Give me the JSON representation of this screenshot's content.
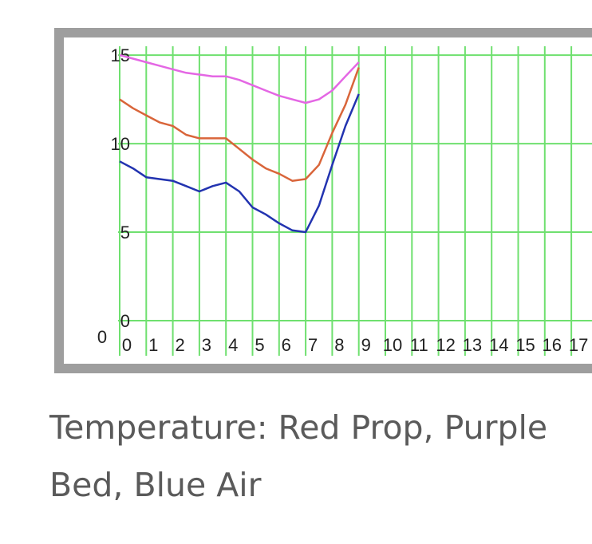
{
  "chart_data": {
    "type": "line",
    "x": [
      0,
      0.5,
      1,
      1.5,
      2,
      2.5,
      3,
      3.5,
      4,
      4.5,
      5,
      5.5,
      6,
      6.5,
      7,
      7.5,
      8,
      8.5,
      9
    ],
    "series": [
      {
        "color": "#e467e4",
        "values": [
          15.0,
          14.8,
          14.6,
          14.4,
          14.2,
          14.0,
          13.9,
          13.8,
          13.8,
          13.6,
          13.3,
          13.0,
          12.7,
          12.5,
          12.3,
          12.5,
          13.0,
          13.8,
          14.6
        ]
      },
      {
        "color": "#d9653a",
        "values": [
          12.5,
          12.0,
          11.6,
          11.2,
          11.0,
          10.5,
          10.3,
          10.3,
          10.3,
          9.7,
          9.1,
          8.6,
          8.3,
          7.9,
          8.0,
          8.8,
          10.6,
          12.2,
          14.3
        ]
      },
      {
        "color": "#2233b0",
        "values": [
          9.0,
          8.6,
          8.1,
          8.0,
          7.9,
          7.6,
          7.3,
          7.6,
          7.8,
          7.3,
          6.4,
          6.0,
          5.5,
          5.1,
          5.0,
          6.5,
          8.8,
          11.0,
          12.8
        ]
      }
    ],
    "xlim": [
      0,
      18
    ],
    "xticks": [
      0,
      1,
      2,
      3,
      4,
      5,
      6,
      7,
      8,
      9,
      10,
      11,
      12,
      13,
      14,
      15,
      16,
      17
    ],
    "ylim": [
      0,
      15.5
    ],
    "yticks": [
      0,
      5,
      10,
      15
    ],
    "origin_label": "0",
    "grid": true,
    "grid_color": "#6fe06f",
    "caption": "Temperature: Red Prop, Purple Bed, Blue Air"
  }
}
